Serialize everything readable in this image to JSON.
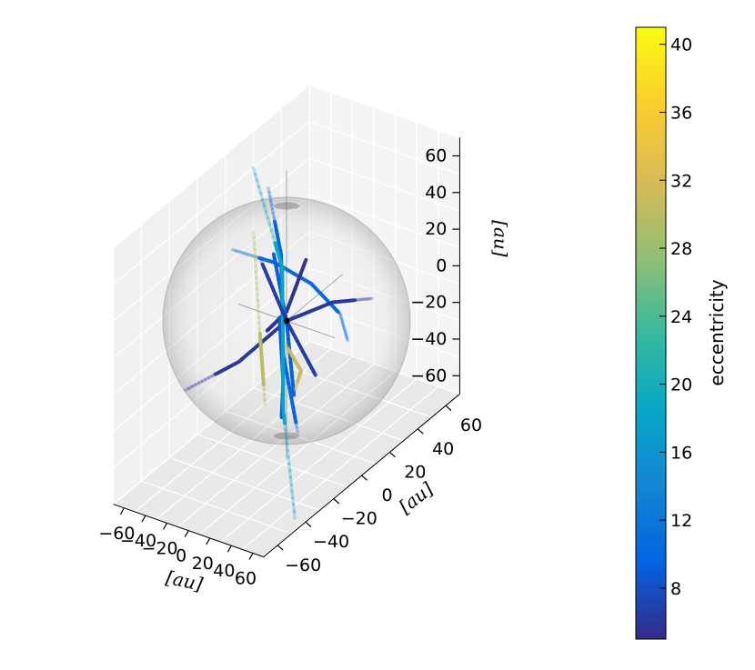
{
  "chart_data": {
    "type": "scatter",
    "projection": "3d",
    "axes": {
      "x": {
        "label": "[au]",
        "range": [
          -70,
          70
        ],
        "ticks": [
          -60,
          -40,
          -20,
          0,
          20,
          40,
          60
        ],
        "tick_labels": [
          "−60",
          "−40",
          "−20",
          "0",
          "20",
          "40",
          "60"
        ]
      },
      "y": {
        "label": "[au]",
        "range": [
          -70,
          70
        ],
        "ticks": [
          -60,
          -40,
          -20,
          0,
          20,
          40,
          60
        ],
        "tick_labels": [
          "−60",
          "−40",
          "−20",
          "0",
          "20",
          "40",
          "60"
        ]
      },
      "z": {
        "label": "[au]",
        "range": [
          -70,
          70
        ],
        "ticks": [
          -60,
          -40,
          -20,
          0,
          20,
          40,
          60
        ],
        "tick_labels": [
          "−60",
          "−40",
          "−20",
          "0",
          "20",
          "40",
          "60"
        ]
      }
    },
    "grid": true,
    "sphere": {
      "radius_au": 50,
      "translucent": true
    },
    "central_body": {
      "position_au": [
        0,
        0,
        0
      ]
    },
    "colorbar": {
      "label": "eccentricity",
      "colormap": "parula",
      "range": [
        5,
        41
      ],
      "ticks": [
        8,
        12,
        16,
        20,
        24,
        28,
        32,
        36,
        40
      ],
      "tick_labels": [
        "8",
        "12",
        "16",
        "20",
        "24",
        "28",
        "32",
        "36",
        "40"
      ],
      "stops": [
        "#352a87",
        "#0363e1",
        "#1485d4",
        "#06a7c6",
        "#38b99e",
        "#92bf73",
        "#d9ba56",
        "#fcce2e",
        "#f9fb0e"
      ]
    },
    "series": [
      {
        "eccentricity": 10.5,
        "points": [
          [
            -70,
            15,
            15
          ],
          [
            -30,
            15,
            16
          ],
          [
            10,
            10,
            16
          ],
          [
            50,
            0,
            14
          ],
          [
            70,
            -10,
            10
          ]
        ]
      },
      {
        "eccentricity": 6,
        "points": [
          [
            -55,
            -30,
            -30
          ],
          [
            -25,
            -15,
            -18
          ],
          [
            0,
            0,
            0
          ],
          [
            30,
            10,
            10
          ],
          [
            60,
            15,
            15
          ]
        ]
      },
      {
        "eccentricity": 5.5,
        "points": [
          [
            -5,
            -10,
            0
          ],
          [
            0,
            0,
            5
          ],
          [
            5,
            10,
            28
          ]
        ]
      },
      {
        "eccentricity": 9.5,
        "points": [
          [
            -30,
            10,
            60
          ],
          [
            -5,
            0,
            35
          ],
          [
            10,
            -10,
            -10
          ],
          [
            30,
            -15,
            -45
          ]
        ]
      },
      {
        "eccentricity": 8.5,
        "points": [
          [
            0,
            -5,
            5
          ],
          [
            10,
            -10,
            -25
          ],
          [
            15,
            -15,
            -40
          ]
        ]
      },
      {
        "eccentricity": 9,
        "points": [
          [
            -25,
            10,
            25
          ],
          [
            0,
            0,
            0
          ],
          [
            20,
            -10,
            -30
          ]
        ]
      },
      {
        "eccentricity": 18.5,
        "points": [
          [
            -70,
            30,
            50
          ],
          [
            -30,
            20,
            10
          ],
          [
            10,
            -10,
            -40
          ],
          [
            60,
            -40,
            -70
          ]
        ]
      },
      {
        "eccentricity": 30,
        "points": [
          [
            -70,
            30,
            15
          ],
          [
            -45,
            15,
            -20
          ],
          [
            -20,
            0,
            -50
          ]
        ]
      },
      {
        "eccentricity": 31,
        "points": [
          [
            -40,
            30,
            -40
          ],
          [
            20,
            -5,
            -20
          ],
          [
            60,
            -40,
            0
          ]
        ]
      },
      {
        "eccentricity": 6.5,
        "points": [
          [
            -50,
            20,
            10
          ],
          [
            0,
            0,
            0
          ],
          [
            40,
            -10,
            -15
          ]
        ]
      }
    ]
  }
}
